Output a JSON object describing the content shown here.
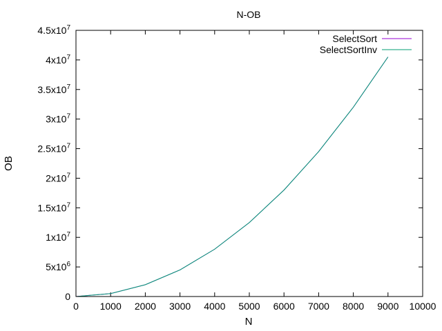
{
  "chart_data": {
    "type": "line",
    "title": "N-OB",
    "xlabel": "N",
    "ylabel": "OB",
    "xlim": [
      0,
      10000
    ],
    "ylim": [
      0,
      45000000
    ],
    "grid": false,
    "legend_position": "top-right",
    "x_ticks": [
      {
        "value": 0,
        "label": "0"
      },
      {
        "value": 1000,
        "label": "1000"
      },
      {
        "value": 2000,
        "label": "2000"
      },
      {
        "value": 3000,
        "label": "3000"
      },
      {
        "value": 4000,
        "label": "4000"
      },
      {
        "value": 5000,
        "label": "5000"
      },
      {
        "value": 6000,
        "label": "6000"
      },
      {
        "value": 7000,
        "label": "7000"
      },
      {
        "value": 8000,
        "label": "8000"
      },
      {
        "value": 9000,
        "label": "9000"
      },
      {
        "value": 10000,
        "label": "10000"
      }
    ],
    "y_ticks": [
      {
        "value": 0,
        "mantissa": "0",
        "exponent": ""
      },
      {
        "value": 5000000,
        "mantissa": "5x10",
        "exponent": "6"
      },
      {
        "value": 10000000,
        "mantissa": "1x10",
        "exponent": "7"
      },
      {
        "value": 15000000,
        "mantissa": "1.5x10",
        "exponent": "7"
      },
      {
        "value": 20000000,
        "mantissa": "2x10",
        "exponent": "7"
      },
      {
        "value": 25000000,
        "mantissa": "2.5x10",
        "exponent": "7"
      },
      {
        "value": 30000000,
        "mantissa": "3x10",
        "exponent": "7"
      },
      {
        "value": 35000000,
        "mantissa": "3.5x10",
        "exponent": "7"
      },
      {
        "value": 40000000,
        "mantissa": "4x10",
        "exponent": "7"
      },
      {
        "value": 45000000,
        "mantissa": "4.5x10",
        "exponent": "7"
      }
    ],
    "x": [
      0,
      1000,
      2000,
      3000,
      4000,
      5000,
      6000,
      7000,
      8000,
      9000
    ],
    "series": [
      {
        "name": "SelectSort",
        "color": "#9400d3",
        "values": [
          0,
          500000,
          2000000,
          4500000,
          8000000,
          12500000,
          18000000,
          24500000,
          32000000,
          40500000
        ]
      },
      {
        "name": "SelectSortInv",
        "color": "#009e73",
        "values": [
          0,
          500000,
          2000000,
          4500000,
          8000000,
          12500000,
          18000000,
          24500000,
          32000000,
          40500000
        ]
      }
    ]
  }
}
